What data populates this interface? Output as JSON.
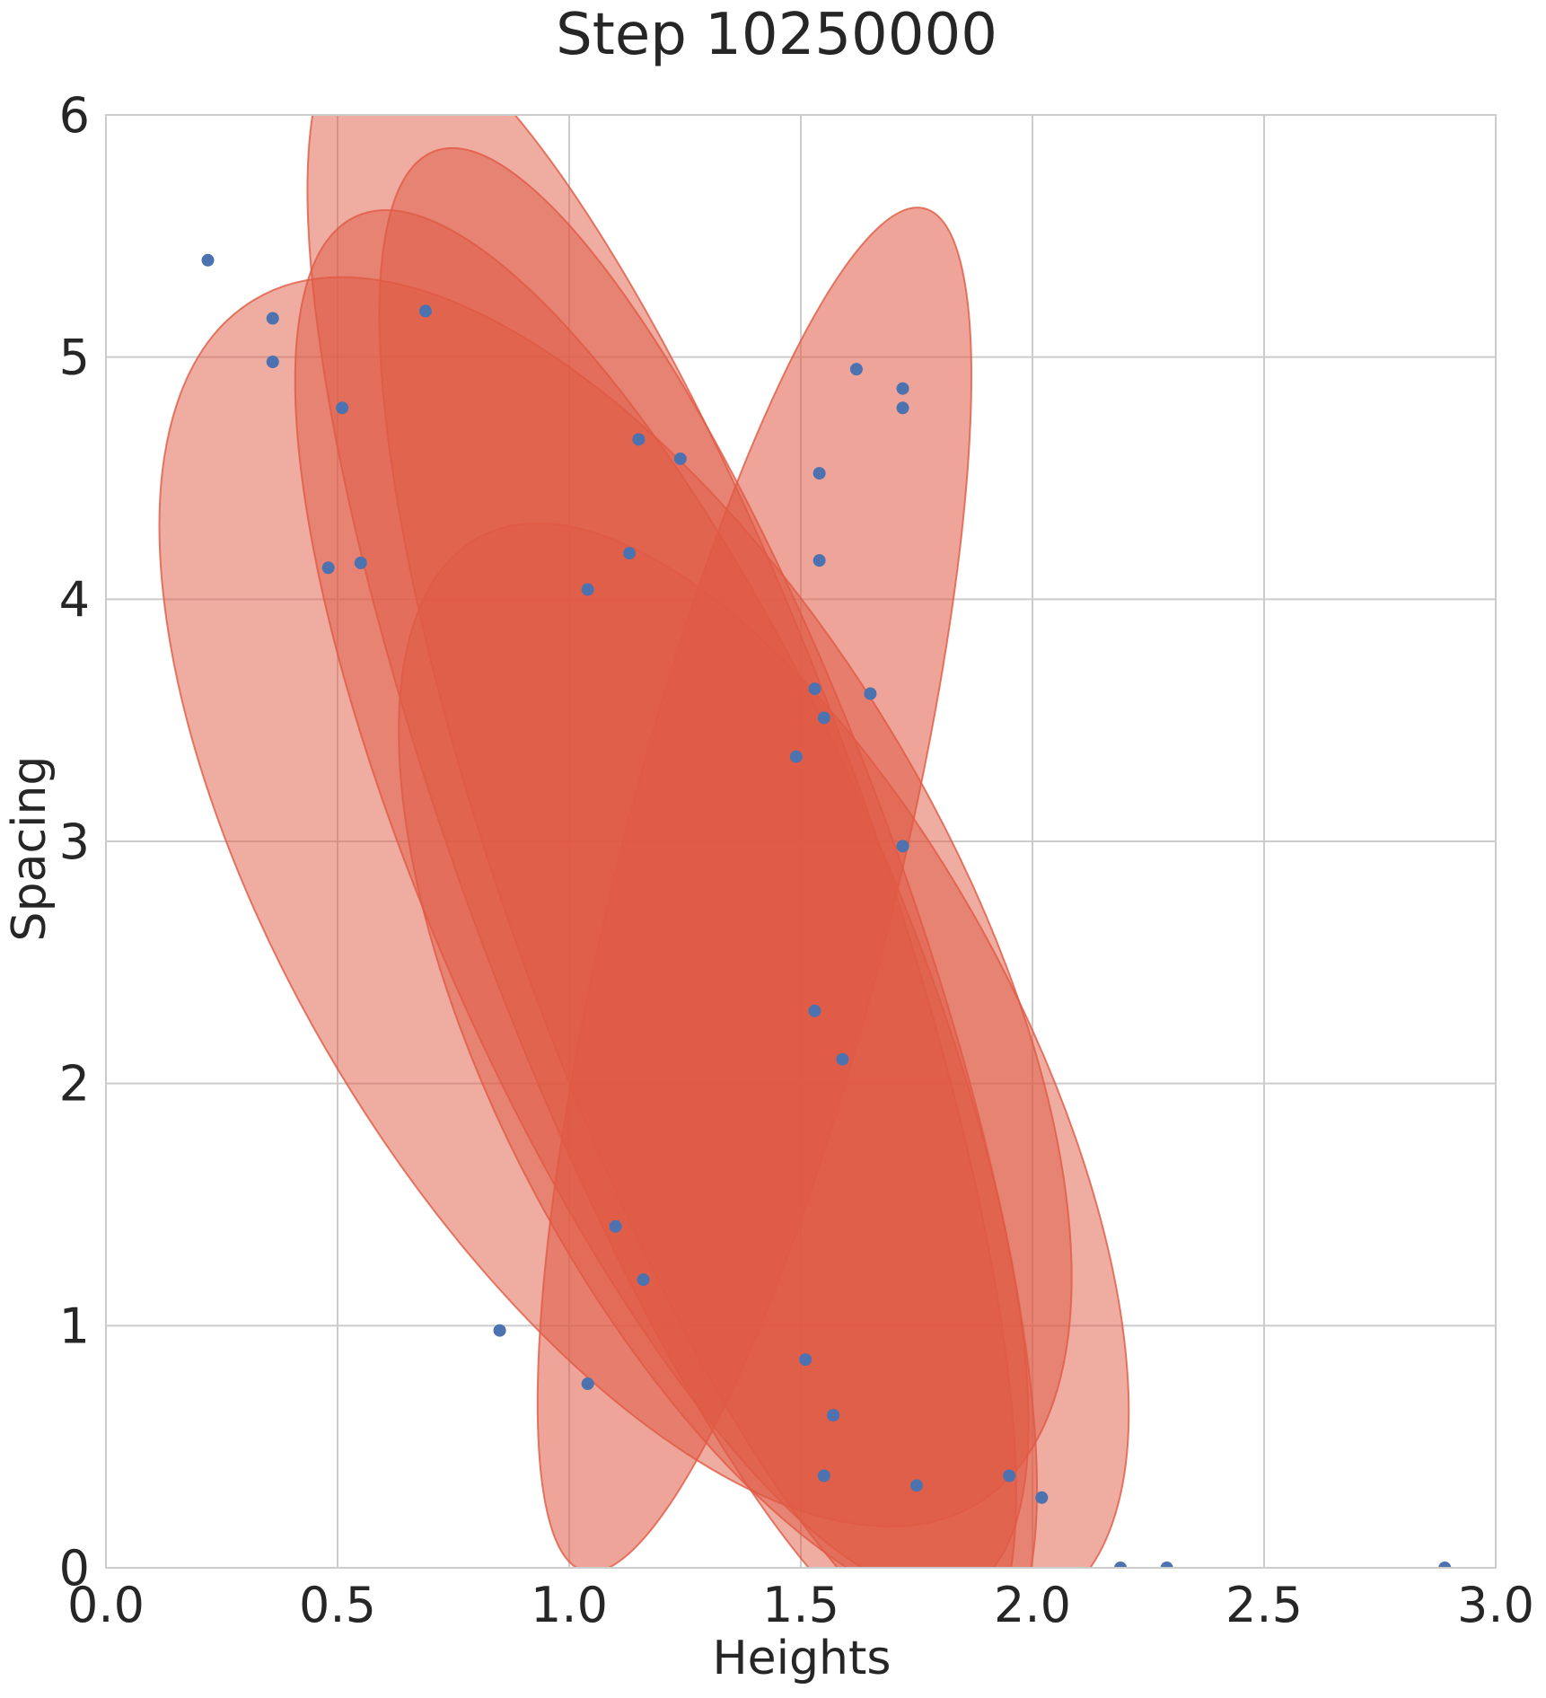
{
  "chart_data": {
    "type": "scatter",
    "title": "Step 10250000",
    "xlabel": "Heights",
    "ylabel": "Spacing",
    "xlim": [
      0.0,
      3.0
    ],
    "ylim": [
      0,
      6
    ],
    "x_ticks": [
      "0.0",
      "0.5",
      "1.0",
      "1.5",
      "2.0",
      "2.5",
      "3.0"
    ],
    "y_ticks": [
      "0",
      "1",
      "2",
      "3",
      "4",
      "5",
      "6"
    ],
    "grid": true,
    "colors": {
      "point": "#4c72b0",
      "ellipse_fill": "#e05a44",
      "ellipse_stroke": "#e05a44",
      "grid": "#cccccc",
      "frame": "#cccccc"
    },
    "points": [
      {
        "x": 0.22,
        "y": 5.4
      },
      {
        "x": 0.36,
        "y": 5.16
      },
      {
        "x": 0.36,
        "y": 4.98
      },
      {
        "x": 0.69,
        "y": 5.19
      },
      {
        "x": 0.51,
        "y": 4.79
      },
      {
        "x": 0.48,
        "y": 4.13
      },
      {
        "x": 0.55,
        "y": 4.15
      },
      {
        "x": 1.15,
        "y": 4.66
      },
      {
        "x": 1.24,
        "y": 4.58
      },
      {
        "x": 1.13,
        "y": 4.19
      },
      {
        "x": 1.04,
        "y": 4.04
      },
      {
        "x": 1.62,
        "y": 4.95
      },
      {
        "x": 1.72,
        "y": 4.87
      },
      {
        "x": 1.72,
        "y": 4.79
      },
      {
        "x": 1.54,
        "y": 4.52
      },
      {
        "x": 1.54,
        "y": 4.16
      },
      {
        "x": 1.53,
        "y": 3.63
      },
      {
        "x": 1.65,
        "y": 3.61
      },
      {
        "x": 1.55,
        "y": 3.51
      },
      {
        "x": 1.49,
        "y": 3.35
      },
      {
        "x": 1.72,
        "y": 2.98
      },
      {
        "x": 1.59,
        "y": 2.1
      },
      {
        "x": 1.53,
        "y": 2.3
      },
      {
        "x": 1.1,
        "y": 1.41
      },
      {
        "x": 1.16,
        "y": 1.19
      },
      {
        "x": 0.85,
        "y": 0.98
      },
      {
        "x": 1.04,
        "y": 0.76
      },
      {
        "x": 1.51,
        "y": 0.86
      },
      {
        "x": 1.57,
        "y": 0.63
      },
      {
        "x": 1.55,
        "y": 0.38
      },
      {
        "x": 1.75,
        "y": 0.34
      },
      {
        "x": 1.95,
        "y": 0.38
      },
      {
        "x": 2.02,
        "y": 0.29
      },
      {
        "x": 2.19,
        "y": 0.0
      },
      {
        "x": 2.29,
        "y": 0.0
      },
      {
        "x": 2.89,
        "y": 0.0
      }
    ],
    "ellipses": [
      {
        "cx": 1.2,
        "cy": 3.0,
        "rx": 0.44,
        "ry": 3.6,
        "angle": -20,
        "opacity": 0.5
      },
      {
        "cx": 1.1,
        "cy": 2.75,
        "rx": 0.7,
        "ry": 2.9,
        "angle": -31,
        "opacity": 0.5
      },
      {
        "cx": 1.2,
        "cy": 2.75,
        "rx": 0.48,
        "ry": 3.1,
        "angle": -24,
        "opacity": 0.5
      },
      {
        "cx": 1.3,
        "cy": 2.75,
        "rx": 0.42,
        "ry": 3.3,
        "angle": -20,
        "opacity": 0.5
      },
      {
        "cx": 1.42,
        "cy": 2.05,
        "rx": 0.56,
        "ry": 2.5,
        "angle": -28,
        "opacity": 0.5
      },
      {
        "cx": 1.4,
        "cy": 2.8,
        "rx": 0.3,
        "ry": 2.9,
        "angle": 14,
        "opacity": 0.55
      }
    ]
  }
}
